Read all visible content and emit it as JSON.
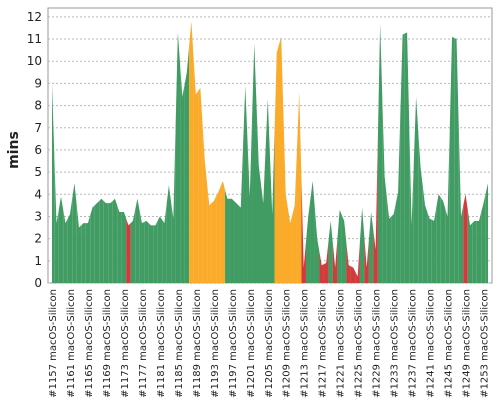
{
  "chart_data": {
    "type": "area",
    "y_label": "mins",
    "categories": [
      "#1157 macOS-Silicon",
      null,
      null,
      null,
      "#1161 macOS-Silicon",
      null,
      null,
      null,
      "#1165 macOS-Silicon",
      null,
      null,
      null,
      "#1169 macOS-Silicon",
      null,
      null,
      null,
      "#1173 macOS-Silicon",
      null,
      null,
      null,
      "#1177 macOS-Silicon",
      null,
      null,
      null,
      "#1181 macOS-Silicon",
      null,
      null,
      null,
      "#1185 macOS-Silicon",
      null,
      null,
      null,
      "#1189 macOS-Silicon",
      null,
      null,
      null,
      "#1193 macOS-Silicon",
      null,
      null,
      null,
      "#1197 macOS-Silicon",
      null,
      null,
      null,
      "#1201 macOS-Silicon",
      null,
      null,
      null,
      "#1205 macOS-Silicon",
      null,
      null,
      null,
      "#1209 macOS-Silicon",
      null,
      null,
      null,
      "#1213 macOS-Silicon",
      null,
      null,
      null,
      "#1217 macOS-Silicon",
      null,
      null,
      null,
      "#1221 macOS-Silicon",
      null,
      null,
      null,
      "#1225 macOS-Silicon",
      null,
      null,
      null,
      "#1229 macOS-Silicon",
      null,
      null,
      null,
      "#1233 macOS-Silicon",
      null,
      null,
      null,
      "#1237 macOS-Silicon",
      null,
      null,
      null,
      "#1241 macOS-Silicon",
      null,
      null,
      null,
      "#1245 macOS-Silicon",
      null,
      null,
      null,
      "#1249 macOS-Silicon",
      null,
      null,
      null,
      "#1253 macOS-Silicon",
      null
    ],
    "values": [
      9.0,
      2.7,
      3.9,
      2.7,
      3.1,
      4.5,
      2.5,
      2.7,
      2.7,
      3.4,
      3.6,
      3.8,
      3.6,
      3.6,
      3.8,
      3.2,
      3.2,
      2.6,
      2.8,
      3.8,
      2.7,
      2.8,
      2.6,
      2.6,
      3.0,
      2.7,
      4.4,
      2.9,
      11.3,
      8.4,
      9.5,
      11.8,
      8.5,
      8.8,
      5.5,
      3.5,
      3.7,
      4.1,
      4.6,
      3.8,
      3.8,
      3.6,
      3.4,
      8.9,
      3.9,
      10.8,
      5.3,
      3.6,
      8.3,
      3.1,
      10.4,
      11.1,
      4.0,
      2.7,
      3.5,
      8.6,
      0.7,
      3.0,
      4.6,
      2.0,
      0.8,
      0.9,
      2.8,
      0.7,
      3.3,
      2.8,
      0.8,
      0.7,
      0.3,
      3.4,
      0.7,
      3.2,
      1.5,
      11.7,
      4.8,
      2.9,
      3.1,
      4.1,
      11.2,
      11.3,
      2.6,
      8.4,
      5.2,
      3.5,
      2.9,
      2.8,
      4.0,
      3.7,
      3.0,
      11.1,
      11.0,
      3.0,
      4.0,
      2.6,
      2.8,
      2.8,
      3.6,
      4.5
    ],
    "point_colors": [
      "#409c62",
      "#409c62",
      "#409c62",
      "#409c62",
      "#409c62",
      "#409c62",
      "#409c62",
      "#409c62",
      "#409c62",
      "#409c62",
      "#409c62",
      "#409c62",
      "#409c62",
      "#409c62",
      "#409c62",
      "#409c62",
      "#409c62",
      "#d03b3b",
      "#409c62",
      "#409c62",
      "#409c62",
      "#409c62",
      "#409c62",
      "#409c62",
      "#409c62",
      "#409c62",
      "#409c62",
      "#409c62",
      "#409c62",
      "#409c62",
      "#409c62",
      "#fbab2a",
      "#fbab2a",
      "#fbab2a",
      "#fbab2a",
      "#fbab2a",
      "#fbab2a",
      "#fbab2a",
      "#fbab2a",
      "#409c62",
      "#409c62",
      "#409c62",
      "#409c62",
      "#409c62",
      "#409c62",
      "#409c62",
      "#409c62",
      "#409c62",
      "#409c62",
      "#409c62",
      "#fbab2a",
      "#fbab2a",
      "#fbab2a",
      "#fbab2a",
      "#fbab2a",
      "#fbab2a",
      "#d03b3b",
      "#409c62",
      "#409c62",
      "#409c62",
      "#d03b3b",
      "#d03b3b",
      "#409c62",
      "#d03b3b",
      "#409c62",
      "#409c62",
      "#d03b3b",
      "#d03b3b",
      "#d03b3b",
      "#409c62",
      "#d03b3b",
      "#409c62",
      "#d03b3b",
      "#409c62",
      "#409c62",
      "#409c62",
      "#409c62",
      "#409c62",
      "#409c62",
      "#409c62",
      "#409c62",
      "#409c62",
      "#409c62",
      "#409c62",
      "#409c62",
      "#409c62",
      "#409c62",
      "#409c62",
      "#409c62",
      "#409c62",
      "#409c62",
      "#409c62",
      "#d03b3b",
      "#409c62",
      "#409c62",
      "#409c62",
      "#409c62",
      "#409c62"
    ],
    "ylim": [
      0,
      12.4
    ],
    "yticks": [
      0,
      1,
      2,
      3,
      4,
      5,
      6,
      7,
      8,
      9,
      10,
      11,
      12
    ],
    "grid": true
  }
}
